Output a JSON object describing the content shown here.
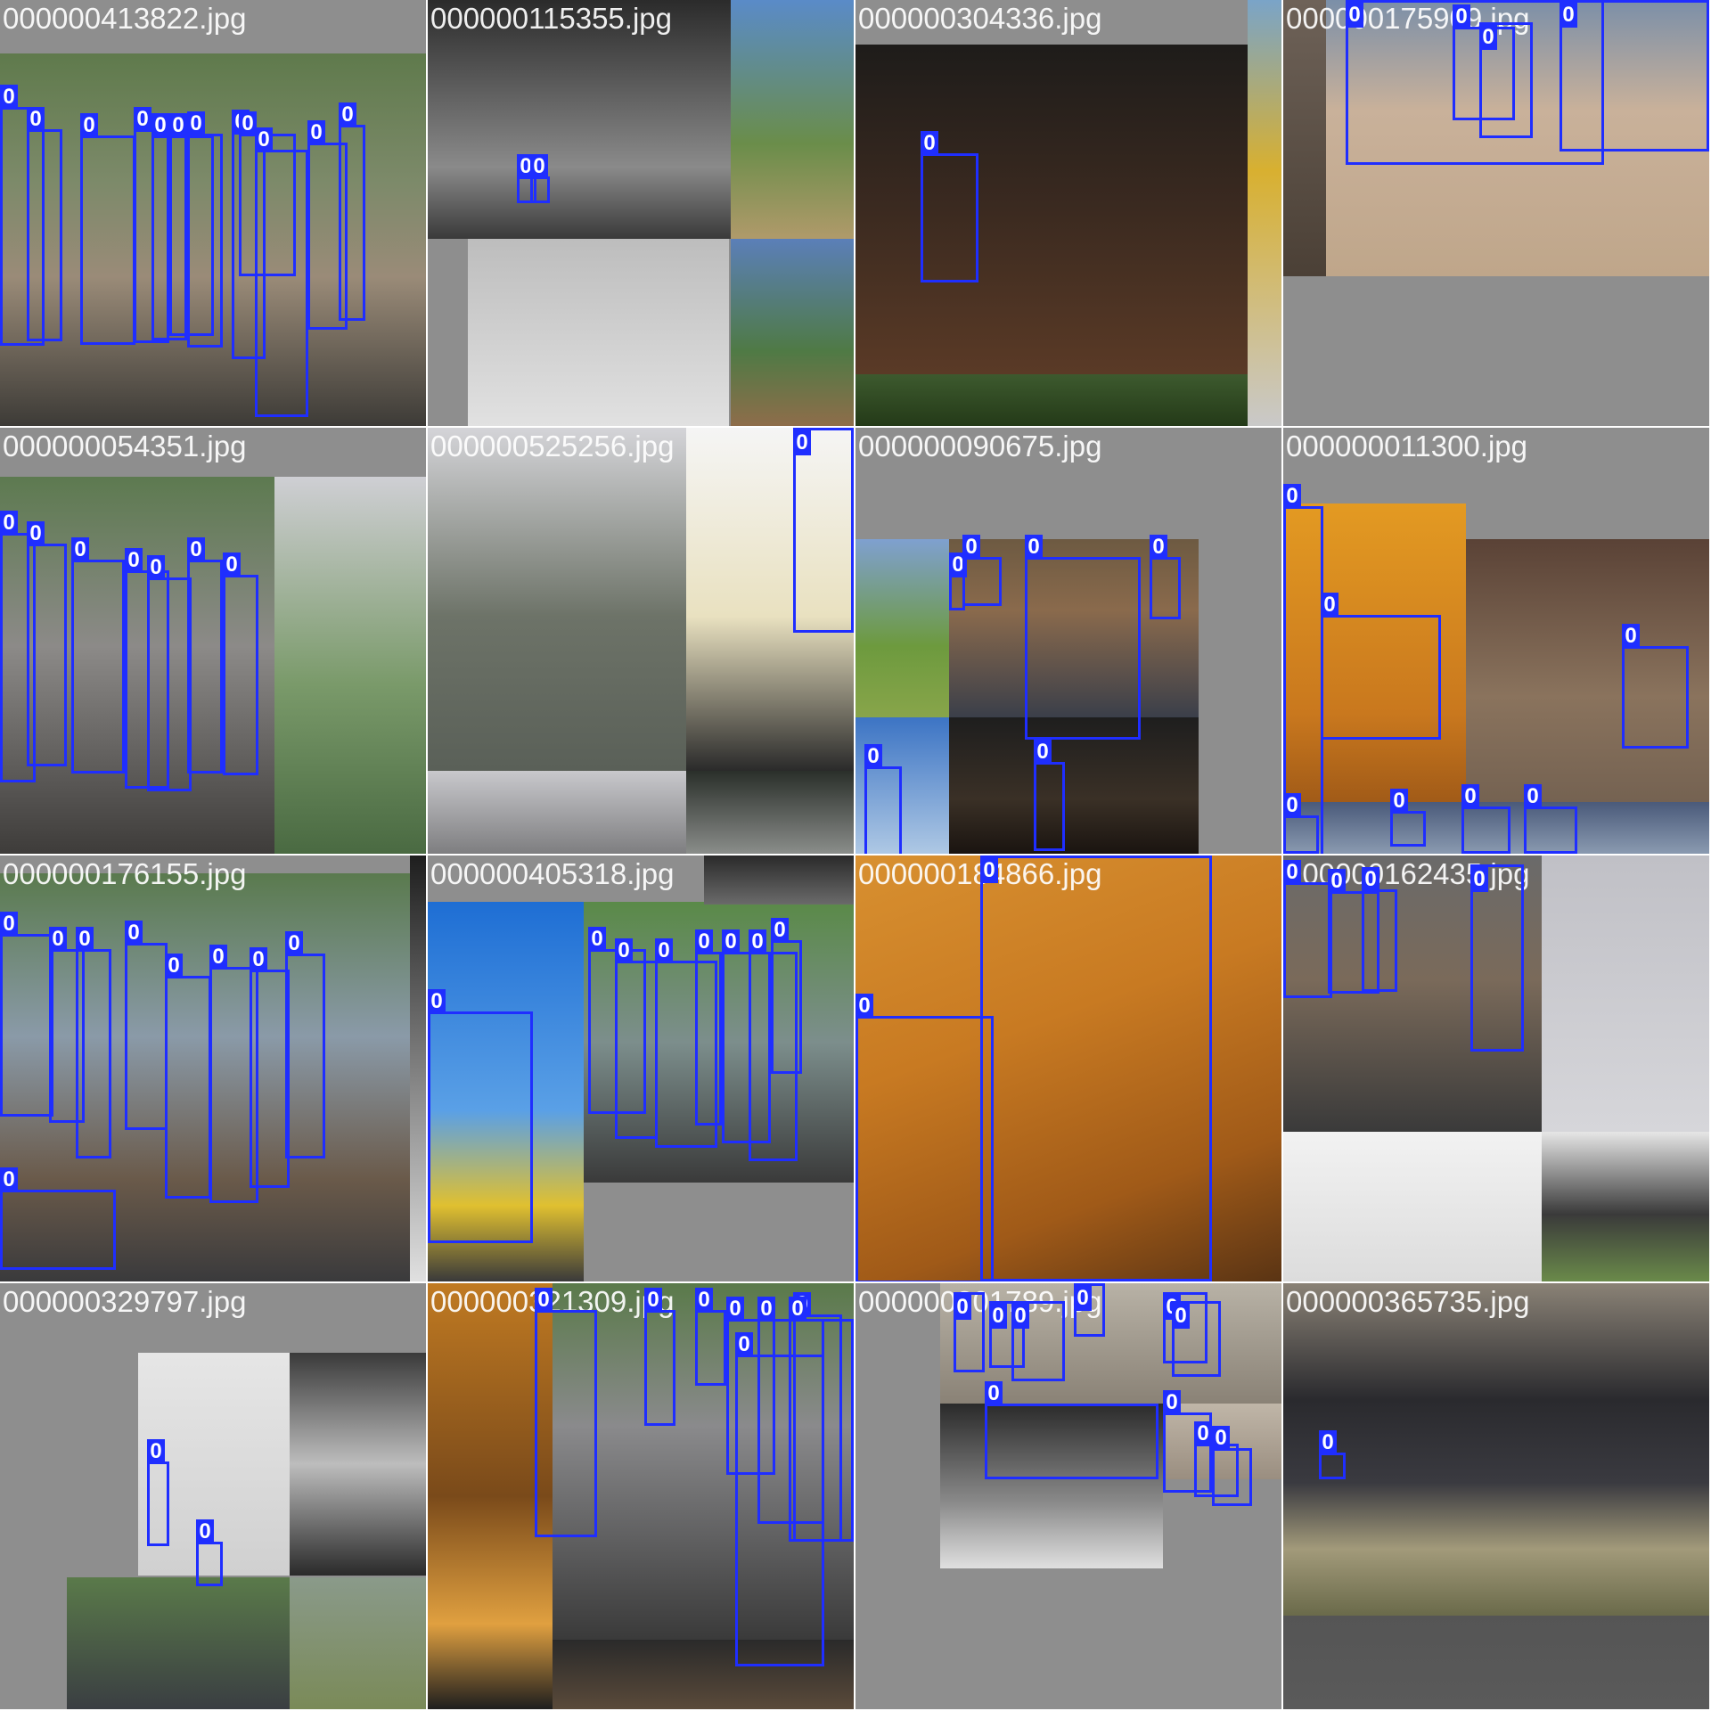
{
  "mosaic": {
    "class_label": "0",
    "box_color": "#1f2eff",
    "tiles": [
      {
        "filename": "000000413822.jpg"
      },
      {
        "filename": "000000115355.jpg"
      },
      {
        "filename": "000000304336.jpg"
      },
      {
        "filename": "000000175909.jpg"
      },
      {
        "filename": "000000054351.jpg"
      },
      {
        "filename": "000000525256.jpg"
      },
      {
        "filename": "000000090675.jpg"
      },
      {
        "filename": "000000011300.jpg"
      },
      {
        "filename": "000000176155.jpg"
      },
      {
        "filename": "000000405318.jpg"
      },
      {
        "filename": "000000184866.jpg"
      },
      {
        "filename": "000000162435.jpg"
      },
      {
        "filename": "000000329797.jpg"
      },
      {
        "filename": "000000321309.jpg"
      },
      {
        "filename": "000000201789.jpg"
      },
      {
        "filename": "000000365735.jpg"
      }
    ]
  }
}
